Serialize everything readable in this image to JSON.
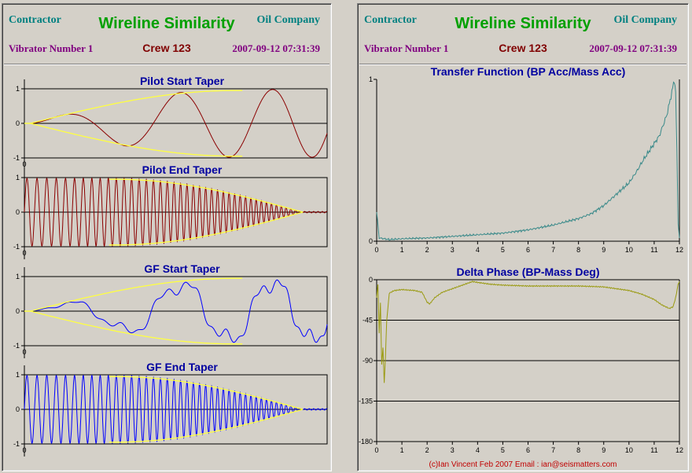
{
  "left_panel": {
    "header": {
      "contractor": "Contractor",
      "title": "Wireline Similarity",
      "oil_company": "Oil Company",
      "vibrator": "Vibrator Number 1",
      "crew": "Crew 123",
      "datetime": "2007-09-12 07:31:39"
    }
  },
  "right_panel": {
    "header": {
      "contractor": "Contractor",
      "title": "Wireline Similarity",
      "oil_company": "Oil Company",
      "vibrator": "Vibrator Number 1",
      "crew": "Crew 123",
      "datetime": "2007-09-12 07:31:39"
    },
    "footer": "(c)Ian Vincent Feb 2007 Email : ian@seismatters.com"
  },
  "colors": {
    "pilot_trace": "#8b0000",
    "gf_trace": "#0000ff",
    "taper_envelope": "#ffff40",
    "transfer_trace": "#3a8a8a",
    "phase_trace": "#9a9a10",
    "title_green": "#00a000",
    "chart_title": "#0000a0"
  },
  "chart_data": [
    {
      "type": "line",
      "title": "Pilot Start Taper",
      "ylim": [
        -1,
        1
      ],
      "yticks": [
        "1",
        "0",
        "-1"
      ],
      "xticks": [
        "0"
      ],
      "series": [
        {
          "role": "trace",
          "color": "pilot",
          "waveform": "sine",
          "start_period": 0.5,
          "end_period": 0.24,
          "taper": "start"
        },
        {
          "role": "envelope",
          "color": "taper"
        }
      ]
    },
    {
      "type": "line",
      "title": "Pilot End Taper",
      "ylim": [
        -1,
        1
      ],
      "yticks": [
        "1",
        "0",
        "-1"
      ],
      "xticks": [
        "0"
      ],
      "series": [
        {
          "role": "trace",
          "color": "pilot",
          "waveform": "sine",
          "start_period": 0.034,
          "end_period": 0.014,
          "taper": "end"
        },
        {
          "role": "envelope",
          "color": "taper"
        }
      ]
    },
    {
      "type": "line",
      "title": "GF Start Taper",
      "ylim": [
        -1,
        1
      ],
      "yticks": [
        "1",
        "0",
        "-1"
      ],
      "xticks": [
        "0"
      ],
      "series": [
        {
          "role": "trace",
          "color": "gf",
          "waveform": "distorted",
          "start_period": 0.5,
          "end_period": 0.24,
          "taper": "start"
        },
        {
          "role": "envelope",
          "color": "taper"
        }
      ]
    },
    {
      "type": "line",
      "title": "GF End Taper",
      "ylim": [
        -1,
        1
      ],
      "yticks": [
        "1",
        "0",
        "-1"
      ],
      "xticks": [
        "0"
      ],
      "series": [
        {
          "role": "trace",
          "color": "gf",
          "waveform": "sine",
          "start_period": 0.034,
          "end_period": 0.014,
          "taper": "end"
        },
        {
          "role": "envelope",
          "color": "taper"
        }
      ]
    },
    {
      "type": "line",
      "title": "Transfer Function (BP Acc/Mass Acc)",
      "xlim": [
        0,
        12
      ],
      "ylim": [
        0,
        1
      ],
      "xticks": [
        "0",
        "1",
        "2",
        "3",
        "4",
        "5",
        "6",
        "7",
        "8",
        "9",
        "10",
        "11",
        "12"
      ],
      "yticks": [
        "1",
        "0"
      ],
      "x": [
        0,
        0.1,
        0.5,
        1,
        2,
        3,
        4,
        5,
        6,
        7,
        8,
        8.5,
        9,
        9.5,
        10,
        10.3,
        10.6,
        10.9,
        11.2,
        11.5,
        11.7,
        11.8,
        11.85,
        11.9,
        11.95,
        12.0
      ],
      "y": [
        0.18,
        0.02,
        0.01,
        0.015,
        0.02,
        0.03,
        0.04,
        0.05,
        0.07,
        0.1,
        0.14,
        0.17,
        0.22,
        0.29,
        0.36,
        0.43,
        0.51,
        0.58,
        0.65,
        0.78,
        0.92,
        1.0,
        0.93,
        0.55,
        0.1,
        0.02
      ]
    },
    {
      "type": "line",
      "title": "Delta Phase (BP-Mass Deg)",
      "xlim": [
        0,
        12
      ],
      "ylim": [
        -180,
        0
      ],
      "xticks": [
        "0",
        "1",
        "2",
        "3",
        "4",
        "5",
        "6",
        "7",
        "8",
        "9",
        "10",
        "11",
        "12"
      ],
      "yticks": [
        "0",
        "-45",
        "-90",
        "-135",
        "-180"
      ],
      "x": [
        0,
        0.05,
        0.1,
        0.15,
        0.2,
        0.25,
        0.3,
        0.35,
        0.4,
        0.5,
        0.7,
        1.0,
        1.5,
        1.8,
        2.0,
        2.1,
        2.3,
        2.6,
        3.0,
        3.5,
        3.8,
        4.0,
        4.5,
        5,
        6,
        7,
        8,
        9,
        10,
        10.5,
        11,
        11.3,
        11.6,
        11.75,
        11.85,
        11.95,
        12.0
      ],
      "y": [
        -20,
        -5,
        -60,
        -25,
        -95,
        -75,
        -115,
        -85,
        -45,
        -15,
        -12,
        -11,
        -12,
        -14,
        -25,
        -27,
        -20,
        -14,
        -10,
        -5,
        -2,
        -3,
        -5,
        -6,
        -7,
        -7,
        -7,
        -8,
        -12,
        -16,
        -22,
        -28,
        -32,
        -30,
        -20,
        -5,
        -2
      ]
    }
  ]
}
